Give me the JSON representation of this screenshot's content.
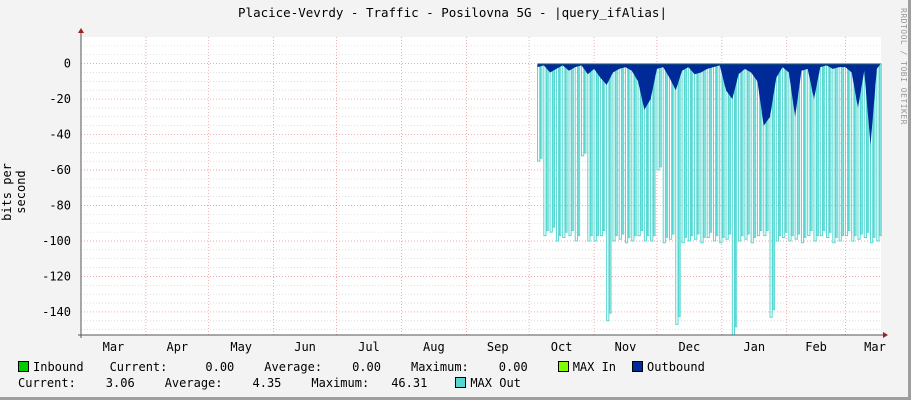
{
  "title": "Placice-Vevrdy - Traffic - Posilovna 5G - |query_ifAlias|",
  "watermark": "RRDTOOL / TOBI OETIKER",
  "legend": {
    "inbound": {
      "label": "Inbound",
      "color": "#00cc00",
      "current_label": "Current:",
      "current": "0.00",
      "average_label": "Average:",
      "average": "0.00",
      "maximum_label": "Maximum:",
      "maximum": "0.00"
    },
    "max_in": {
      "label": "MAX In",
      "color": "#7fff00"
    },
    "outbound": {
      "label": "Outbound",
      "color": "#002a97",
      "current_label": "Current:",
      "current": "3.06",
      "average_label": "Average:",
      "average": "4.35",
      "maximum_label": "Maximum:",
      "maximum": "46.31"
    },
    "max_out": {
      "label": "MAX Out",
      "color": "#56d7d2"
    }
  },
  "chart_data": {
    "type": "area",
    "title": "Placice-Vevrdy - Traffic - Posilovna 5G - |query_ifAlias|",
    "ylabel": "bits per second",
    "ylim": [
      -153,
      15
    ],
    "yticks": [
      0,
      -20,
      -40,
      -60,
      -80,
      -100,
      -120,
      -140
    ],
    "ytick_labels": [
      "0",
      "-20",
      "-40",
      "-60",
      "-80",
      "-100",
      "-120",
      "-140"
    ],
    "xlim": [
      "Mar 1",
      "Mar 18"
    ],
    "xtick_labels": [
      "Mar",
      "Apr",
      "May",
      "Jun",
      "Jul",
      "Aug",
      "Sep",
      "Oct",
      "Nov",
      "Dec",
      "Jan",
      "Feb",
      "Mar"
    ],
    "grid": true,
    "legend_placement": "bottom",
    "x": [
      "Oct 5",
      "Oct 8",
      "Oct 11",
      "Oct 14",
      "Oct 17",
      "Oct 20",
      "Oct 23",
      "Oct 26",
      "Oct 29",
      "Nov 1",
      "Nov 4",
      "Nov 7",
      "Nov 10",
      "Nov 13",
      "Nov 16",
      "Nov 19",
      "Nov 22",
      "Nov 25",
      "Nov 28",
      "Dec 1",
      "Dec 4",
      "Dec 7",
      "Dec 10",
      "Dec 13",
      "Dec 16",
      "Dec 19",
      "Dec 22",
      "Dec 25",
      "Dec 28",
      "Dec 31",
      "Jan 3",
      "Jan 6",
      "Jan 9",
      "Jan 12",
      "Jan 15",
      "Jan 18",
      "Jan 21",
      "Jan 24",
      "Jan 27",
      "Jan 30",
      "Feb 2",
      "Feb 5",
      "Feb 8",
      "Feb 11",
      "Feb 14",
      "Feb 17",
      "Feb 20",
      "Feb 23",
      "Feb 26",
      "Mar 1",
      "Mar 4",
      "Mar 7",
      "Mar 10",
      "Mar 13",
      "Mar 16"
    ],
    "series": [
      {
        "name": "Inbound",
        "color": "#00cc00",
        "values": [
          0,
          0,
          0,
          0,
          0,
          0,
          0,
          0,
          0,
          0,
          0,
          0,
          0,
          0,
          0,
          0,
          0,
          0,
          0,
          0,
          0,
          0,
          0,
          0,
          0,
          0,
          0,
          0,
          0,
          0,
          0,
          0,
          0,
          0,
          0,
          0,
          0,
          0,
          0,
          0,
          0,
          0,
          0,
          0,
          0,
          0,
          0,
          0,
          0,
          0,
          0,
          0,
          0,
          0,
          0
        ]
      },
      {
        "name": "MAX In",
        "color": "#7fff00",
        "values": [
          0,
          0,
          0,
          0,
          0,
          0,
          0,
          0,
          0,
          0,
          0,
          0,
          0,
          0,
          0,
          0,
          0,
          0,
          0,
          0,
          0,
          0,
          0,
          0,
          0,
          0,
          0,
          0,
          0,
          0,
          0,
          0,
          0,
          0,
          0,
          0,
          0,
          0,
          0,
          0,
          0,
          0,
          0,
          0,
          0,
          0,
          0,
          0,
          0,
          0,
          0,
          0,
          0,
          0,
          0
        ]
      },
      {
        "name": "MAX Out",
        "color": "#56d7d2",
        "values": [
          -55,
          -97,
          -95,
          -100,
          -98,
          -97,
          -100,
          -52,
          -100,
          -100,
          -97,
          -145,
          -100,
          -99,
          -101,
          -100,
          -97,
          -100,
          -100,
          -60,
          -101,
          -99,
          -147,
          -101,
          -100,
          -99,
          -101,
          -98,
          -100,
          -101,
          -99,
          -153,
          -100,
          -99,
          -101,
          -97,
          -97,
          -143,
          -100,
          -98,
          -100,
          -99,
          -101,
          -97,
          -100,
          -97,
          -98,
          -101,
          -100,
          -97,
          -100,
          -99,
          -98,
          -101,
          -100
        ]
      },
      {
        "name": "Outbound",
        "color": "#002a97",
        "values": [
          -2,
          -1,
          -5,
          -3,
          -1,
          -4,
          -2,
          -1,
          -6,
          -3,
          -8,
          -12,
          -5,
          -3,
          -2,
          -4,
          -10,
          -26,
          -20,
          -3,
          -2,
          -8,
          -15,
          -4,
          -2,
          -6,
          -5,
          -3,
          -2,
          -1,
          -15,
          -20,
          -6,
          -3,
          -5,
          -10,
          -35,
          -30,
          -8,
          -2,
          -5,
          -30,
          -4,
          -3,
          -20,
          -2,
          -1,
          -3,
          -2,
          -2,
          -5,
          -25,
          -4,
          -46,
          -3
        ]
      }
    ]
  }
}
